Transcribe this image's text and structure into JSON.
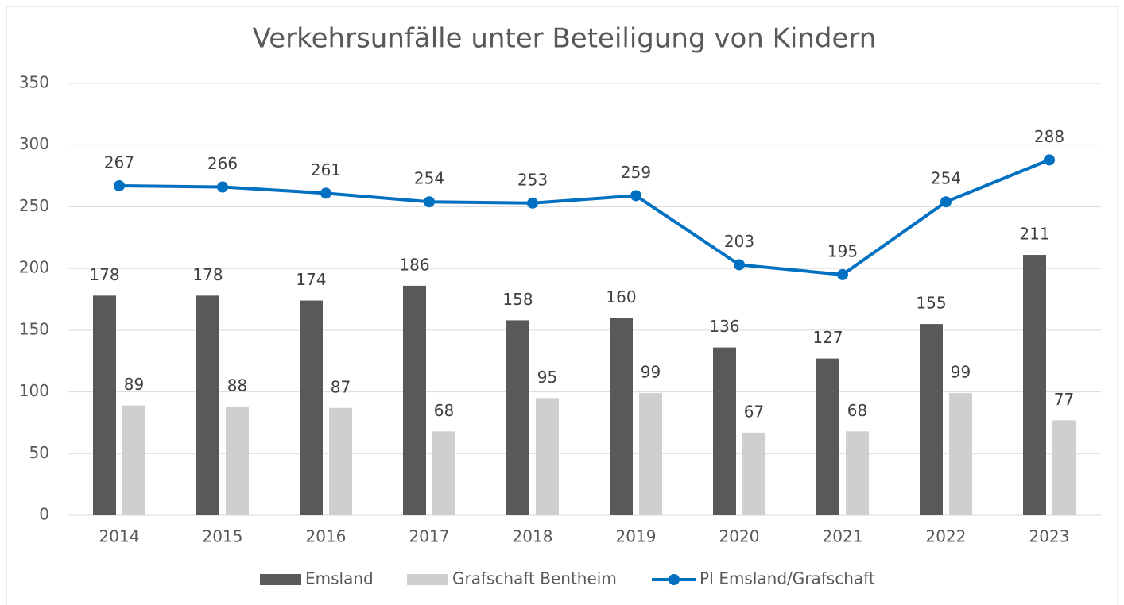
{
  "chart_data": {
    "type": "bar",
    "title": "Verkehrsunfälle unter Beteiligung von Kindern",
    "categories": [
      "2014",
      "2015",
      "2016",
      "2017",
      "2018",
      "2019",
      "2020",
      "2021",
      "2022",
      "2023"
    ],
    "series": [
      {
        "name": "Emsland",
        "color": "#595959",
        "type": "bar",
        "values": [
          178,
          178,
          174,
          186,
          158,
          160,
          136,
          127,
          155,
          211
        ]
      },
      {
        "name": "Grafschaft Bentheim",
        "color": "#d0cece",
        "type": "bar",
        "values": [
          89,
          88,
          87,
          68,
          95,
          99,
          67,
          68,
          99,
          77
        ]
      },
      {
        "name": "PI Emsland/Grafschaft",
        "color": "#0070c0",
        "type": "line",
        "values": [
          267,
          266,
          261,
          254,
          253,
          259,
          203,
          195,
          254,
          288
        ]
      }
    ],
    "ylim": [
      0,
      350
    ],
    "yticks": [
      0,
      50,
      100,
      150,
      200,
      250,
      300,
      350
    ],
    "grid": true,
    "legend": "bottom"
  }
}
